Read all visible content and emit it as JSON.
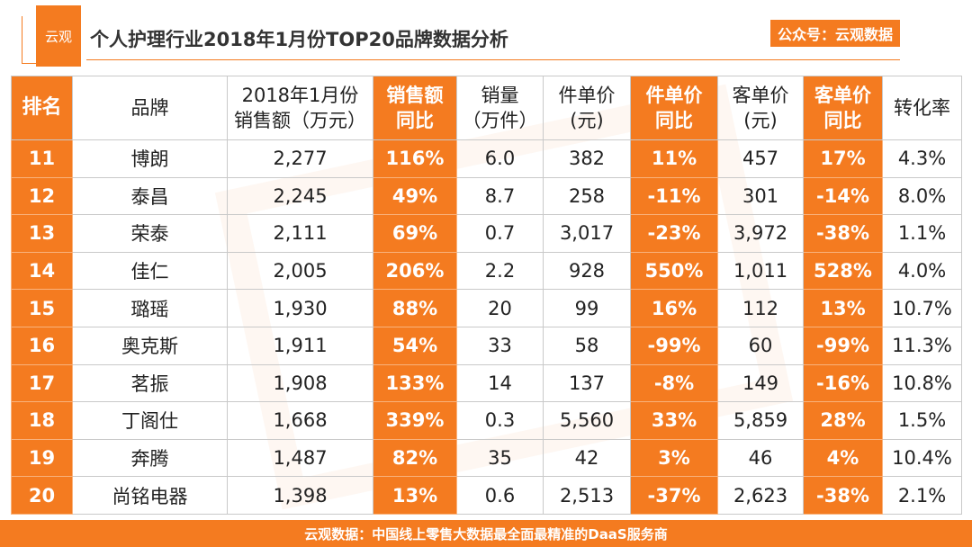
{
  "header": {
    "logo_text": "云观",
    "title": "个人护理行业2018年1月份TOP20品牌数据分析",
    "badge": "公众号：云观数据"
  },
  "colors": {
    "accent": "#f47b20"
  },
  "table": {
    "columns": [
      [
        "排名"
      ],
      [
        "品牌"
      ],
      [
        "2018年1月份",
        "销售额（万元）"
      ],
      [
        "销售额",
        "同比"
      ],
      [
        "销量",
        "（万件）"
      ],
      [
        "件单价",
        "(元)"
      ],
      [
        "件单价",
        "同比"
      ],
      [
        "客单价",
        "(元)"
      ],
      [
        "客单价",
        "同比"
      ],
      [
        "转化率"
      ]
    ],
    "rows": [
      [
        "11",
        "博朗",
        "2,277",
        "116%",
        "6.0",
        "382",
        "11%",
        "457",
        "17%",
        "4.3%"
      ],
      [
        "12",
        "泰昌",
        "2,245",
        "49%",
        "8.7",
        "258",
        "-11%",
        "301",
        "-14%",
        "8.0%"
      ],
      [
        "13",
        "荣泰",
        "2,111",
        "69%",
        "0.7",
        "3,017",
        "-23%",
        "3,972",
        "-38%",
        "1.1%"
      ],
      [
        "14",
        "佳仁",
        "2,005",
        "206%",
        "2.2",
        "928",
        "550%",
        "1,011",
        "528%",
        "4.0%"
      ],
      [
        "15",
        "璐瑶",
        "1,930",
        "88%",
        "20",
        "99",
        "16%",
        "112",
        "13%",
        "10.7%"
      ],
      [
        "16",
        "奥克斯",
        "1,911",
        "54%",
        "33",
        "58",
        "-99%",
        "60",
        "-99%",
        "11.3%"
      ],
      [
        "17",
        "茗振",
        "1,908",
        "133%",
        "14",
        "137",
        "-8%",
        "149",
        "-16%",
        "10.8%"
      ],
      [
        "18",
        "丁阁仕",
        "1,668",
        "339%",
        "0.3",
        "5,560",
        "33%",
        "5,859",
        "28%",
        "1.5%"
      ],
      [
        "19",
        "奔腾",
        "1,487",
        "82%",
        "35",
        "42",
        "3%",
        "46",
        "4%",
        "10.4%"
      ],
      [
        "20",
        "尚铭电器",
        "1,398",
        "13%",
        "0.6",
        "2,513",
        "-37%",
        "2,623",
        "-38%",
        "2.1%"
      ]
    ]
  },
  "footer": {
    "text": "云观数据：中国线上零售大数据最全面最精准的DaaS服务商"
  }
}
